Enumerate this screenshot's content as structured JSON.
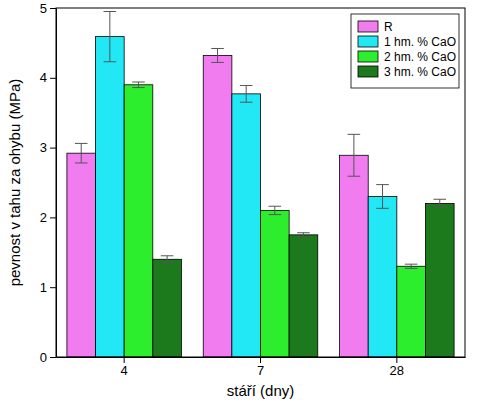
{
  "chart_data": {
    "type": "bar",
    "x_label": "stáří (dny)",
    "y_label": "pevnost v tahu za ohybu (MPa)",
    "categories": [
      "4",
      "7",
      "28"
    ],
    "series": [
      {
        "name": "R",
        "color": "#f07cf0",
        "values": [
          2.92,
          4.32,
          2.89
        ],
        "errors": [
          0.14,
          0.1,
          0.3
        ]
      },
      {
        "name": "1 hm. % CaO",
        "color": "#22e8f5",
        "values": [
          4.59,
          3.77,
          2.3
        ],
        "errors": [
          0.36,
          0.12,
          0.17
        ]
      },
      {
        "name": "2 hm. % CaO",
        "color": "#2cee2c",
        "values": [
          3.9,
          2.1,
          1.3
        ],
        "errors": [
          0.04,
          0.06,
          0.03
        ]
      },
      {
        "name": "3 hm. % CaO",
        "color": "#1c7a1c",
        "values": [
          1.4,
          1.75,
          2.2
        ],
        "errors": [
          0.05,
          0.03,
          0.06
        ]
      }
    ],
    "ylim": [
      0,
      5
    ],
    "yticks": [
      0,
      1,
      2,
      3,
      4,
      5
    ],
    "legend": "upper right"
  }
}
